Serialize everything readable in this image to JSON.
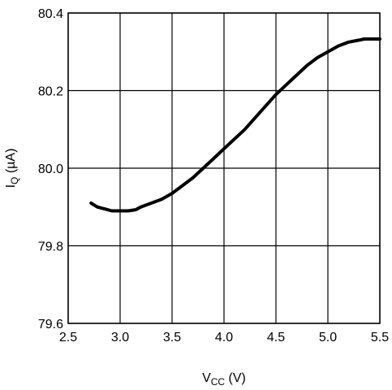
{
  "chart_data": {
    "type": "line",
    "x_ticks": [
      "2.5",
      "3.0",
      "3.5",
      "4.0",
      "4.5",
      "5.0",
      "5.5"
    ],
    "y_ticks": [
      "79.6",
      "79.8",
      "80.0",
      "80.2",
      "80.4"
    ],
    "xlim": [
      2.5,
      5.5
    ],
    "ylim": [
      79.6,
      80.4
    ],
    "xlabel": {
      "main": "V",
      "sub": "CC",
      "unit": " (V)"
    },
    "ylabel": {
      "main": "I",
      "sub": "Q",
      "unit": " (µA)"
    },
    "grid": true,
    "series": [
      {
        "x": [
          2.72,
          2.78,
          2.85,
          2.92,
          3.0,
          3.08,
          3.15,
          3.2,
          3.3,
          3.4,
          3.5,
          3.6,
          3.7,
          3.8,
          3.9,
          4.0,
          4.1,
          4.2,
          4.3,
          4.4,
          4.5,
          4.6,
          4.7,
          4.8,
          4.9,
          5.0,
          5.1,
          5.2,
          5.3,
          5.35,
          5.4,
          5.5
        ],
        "y": [
          79.91,
          79.9,
          79.895,
          79.89,
          79.89,
          79.89,
          79.893,
          79.9,
          79.91,
          79.92,
          79.935,
          79.955,
          79.975,
          80.0,
          80.025,
          80.05,
          80.075,
          80.1,
          80.13,
          80.16,
          80.19,
          80.215,
          80.24,
          80.265,
          80.285,
          80.3,
          80.315,
          80.325,
          80.33,
          80.333,
          80.333,
          80.333
        ]
      }
    ]
  }
}
